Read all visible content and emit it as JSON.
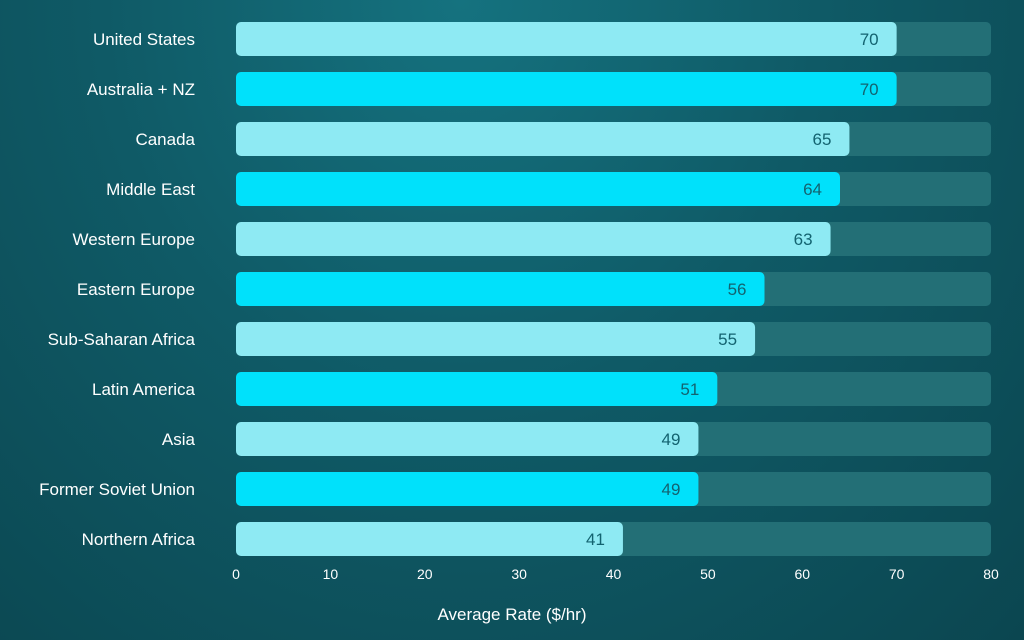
{
  "chart_data": {
    "type": "bar",
    "orientation": "horizontal",
    "categories": [
      "United States",
      "Australia + NZ",
      "Canada",
      "Middle East",
      "Western Europe",
      "Eastern Europe",
      "Sub-Saharan Africa",
      "Latin America",
      "Asia",
      "Former Soviet Union",
      "Northern Africa"
    ],
    "values": [
      70,
      70,
      65,
      64,
      63,
      56,
      55,
      51,
      49,
      49,
      41
    ],
    "title": "",
    "xlabel": "Average Rate ($/hr)",
    "ylabel": "",
    "xlim": [
      0,
      80
    ],
    "xticks": [
      0,
      10,
      20,
      30,
      40,
      50,
      60,
      70,
      80
    ],
    "grid": false,
    "legend": "none",
    "colors": {
      "bar_light": "#8eeaf3",
      "bar_bright": "#00e1fb",
      "track": "#236f76",
      "value_text": "#136370",
      "text": "#ffffff"
    }
  }
}
